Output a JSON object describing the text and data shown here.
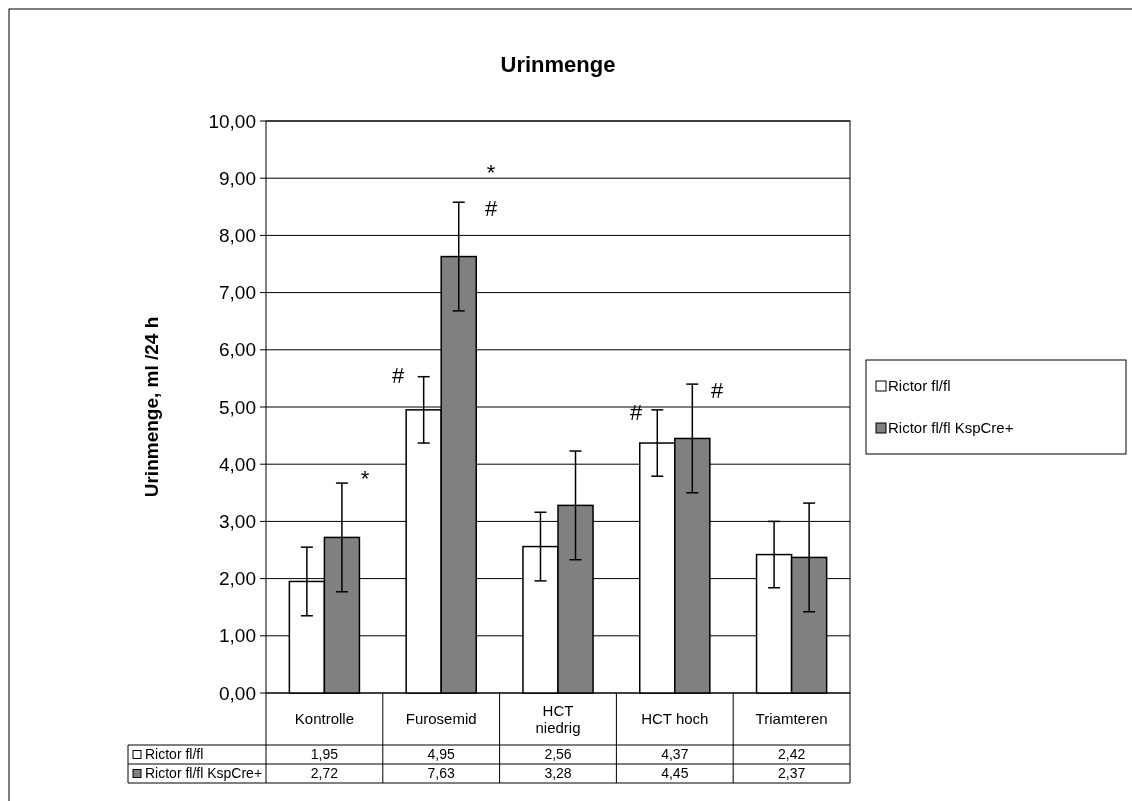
{
  "chart_data": {
    "type": "bar",
    "title": "Urinmenge",
    "ylabel": "Urinmenge, ml /24 h",
    "categories": [
      "Kontrolle",
      "Furosemid",
      "HCT niedrig",
      "HCT hoch",
      "Triamteren"
    ],
    "series": [
      {
        "name": "Rictor fl/fl",
        "color": "#ffffff",
        "values": [
          1.95,
          4.95,
          2.56,
          4.37,
          2.42
        ],
        "value_labels": [
          "1,95",
          "4,95",
          "2,56",
          "4,37",
          "2,42"
        ],
        "errors": [
          0.6,
          0.58,
          0.6,
          0.58,
          0.58
        ]
      },
      {
        "name": "Rictor fl/fl KspCre+",
        "color": "#808080",
        "values": [
          2.72,
          7.63,
          3.28,
          4.45,
          2.37
        ],
        "value_labels": [
          "2,72",
          "7,63",
          "3,28",
          "4,45",
          "2,37"
        ],
        "errors": [
          0.95,
          0.95,
          0.95,
          0.95,
          0.95
        ]
      }
    ],
    "ylim": [
      0,
      10
    ],
    "yticks": [
      {
        "value": 0,
        "label": "0,00"
      },
      {
        "value": 1,
        "label": "1,00"
      },
      {
        "value": 2,
        "label": "2,00"
      },
      {
        "value": 3,
        "label": "3,00"
      },
      {
        "value": 4,
        "label": "4,00"
      },
      {
        "value": 5,
        "label": "5,00"
      },
      {
        "value": 6,
        "label": "6,00"
      },
      {
        "value": 7,
        "label": "7,00"
      },
      {
        "value": 8,
        "label": "8,00"
      },
      {
        "value": 9,
        "label": "9,00"
      },
      {
        "value": 10,
        "label": "10,00"
      }
    ],
    "grid": "y",
    "legend": "right",
    "annotations": [
      "*",
      "#",
      "*",
      "#",
      "#",
      "#"
    ]
  }
}
